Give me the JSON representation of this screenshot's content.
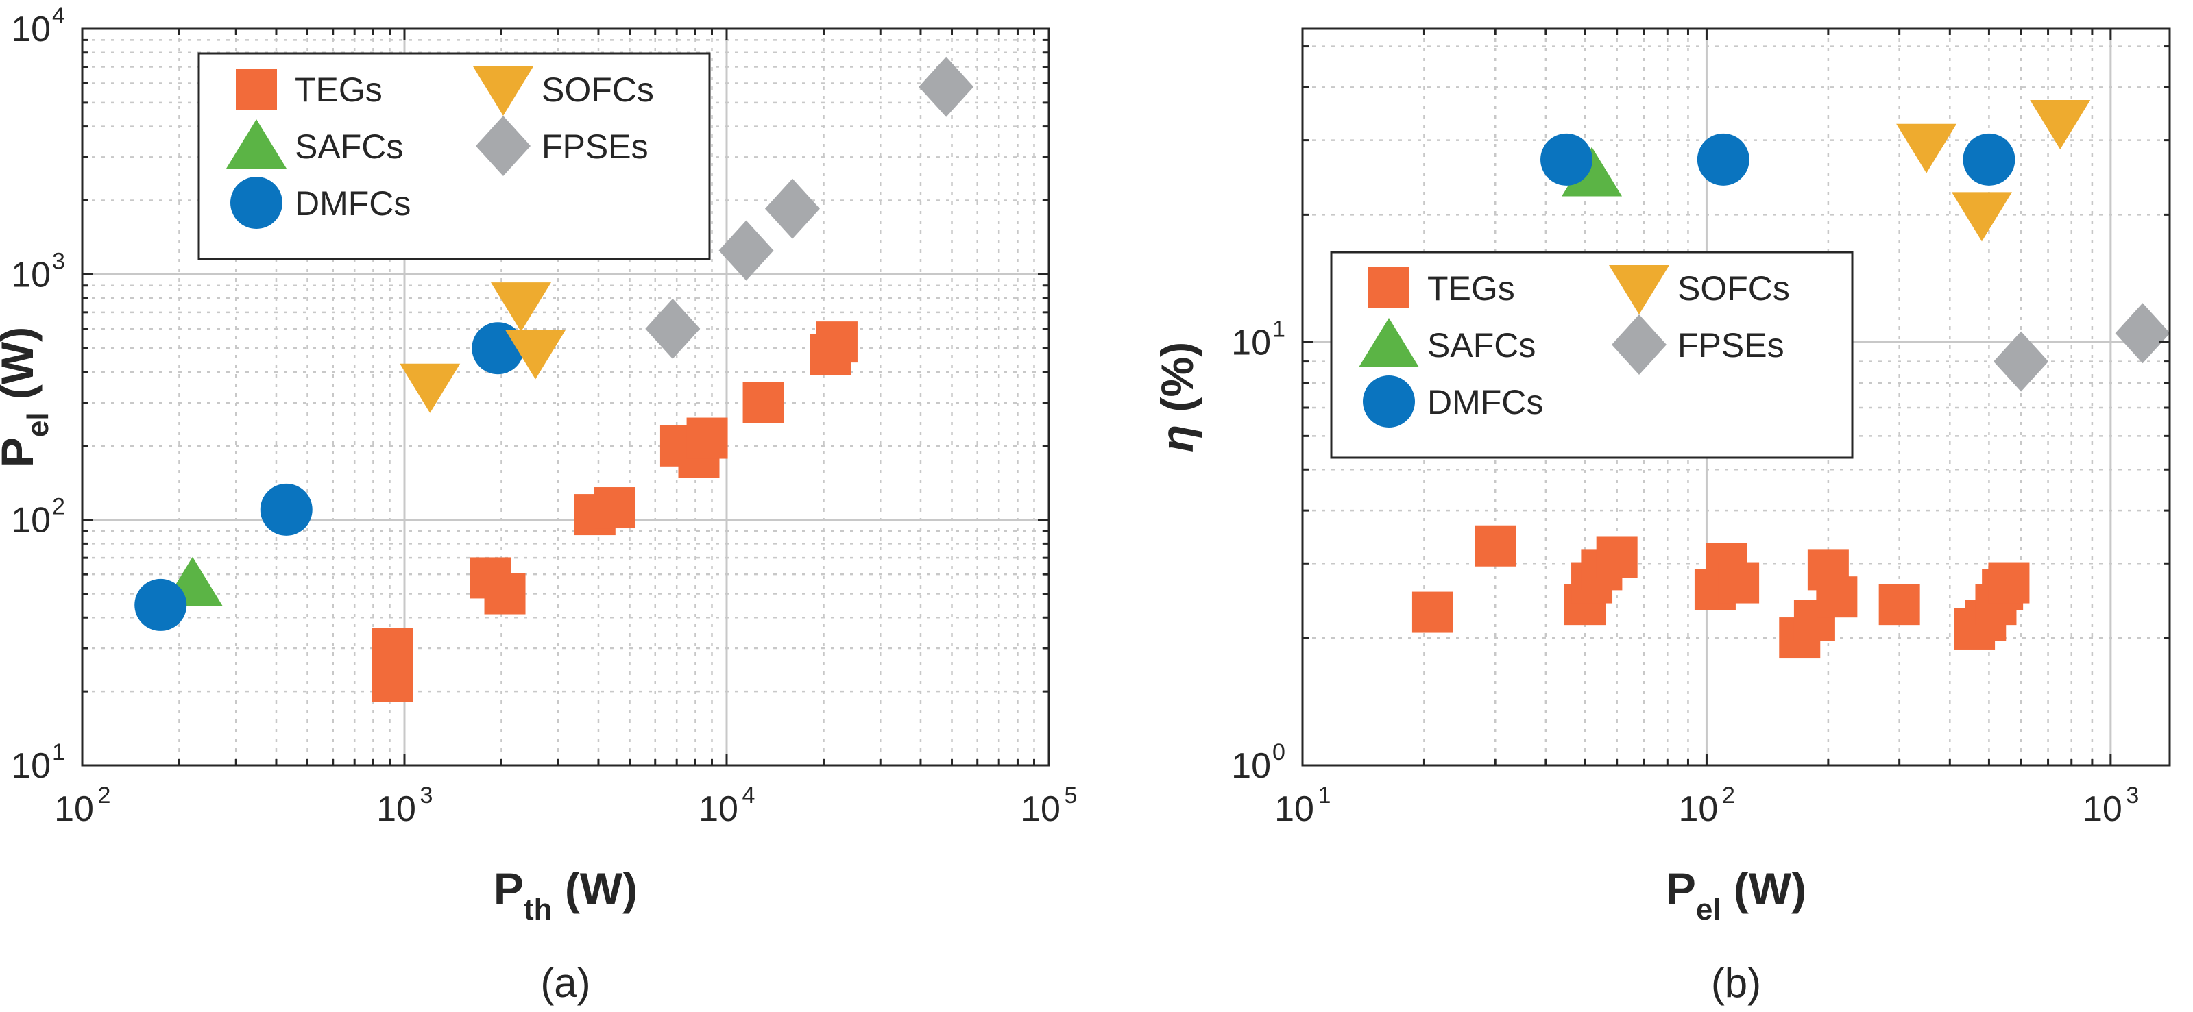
{
  "colors": {
    "TEGs": "#f26b3a",
    "SAFCs": "#5bb445",
    "DMFCs": "#0a74bf",
    "SOFCs": "#eeab2f",
    "FPSEs": "#a7a9ac",
    "grid": "#c8c8c8",
    "axis": "#262626"
  },
  "legend_labels": [
    "TEGs",
    "SAFCs",
    "DMFCs",
    "SOFCs",
    "FPSEs"
  ],
  "chart_data": [
    {
      "type": "scatter",
      "panel": "a",
      "caption": "(a)",
      "xlabel": "P",
      "xlabel_sub": "th",
      "xlabel_unit": " (W)",
      "ylabel": "P",
      "ylabel_sub": "el",
      "ylabel_unit": " (W)",
      "xscale": "log",
      "yscale": "log",
      "xlim": [
        100,
        100000
      ],
      "ylim": [
        10,
        10000
      ],
      "xticks": [
        {
          "base": "10",
          "exp": "2"
        },
        {
          "base": "10",
          "exp": "3"
        },
        {
          "base": "10",
          "exp": "4"
        },
        {
          "base": "10",
          "exp": "5"
        }
      ],
      "yticks": [
        {
          "base": "10",
          "exp": "1"
        },
        {
          "base": "10",
          "exp": "2"
        },
        {
          "base": "10",
          "exp": "3"
        },
        {
          "base": "10",
          "exp": "4"
        }
      ],
      "grid": true,
      "legend_position": "top-left",
      "series": [
        {
          "name": "TEGs",
          "marker": "square",
          "points": [
            [
              920,
              22
            ],
            [
              920,
              30
            ],
            [
              1850,
              58
            ],
            [
              2050,
              50
            ],
            [
              3900,
              105
            ],
            [
              4500,
              112
            ],
            [
              7200,
              200
            ],
            [
              8200,
              180
            ],
            [
              8700,
              215
            ],
            [
              13000,
              300
            ],
            [
              21000,
              470
            ],
            [
              22000,
              530
            ]
          ]
        },
        {
          "name": "SAFCs",
          "marker": "triangle-up",
          "points": [
            [
              220,
              55
            ]
          ]
        },
        {
          "name": "DMFCs",
          "marker": "circle",
          "points": [
            [
              175,
              45
            ],
            [
              430,
              110
            ],
            [
              1950,
              500
            ]
          ]
        },
        {
          "name": "SOFCs",
          "marker": "triangle-down",
          "points": [
            [
              1200,
              350
            ],
            [
              2300,
              750
            ],
            [
              2550,
              480
            ]
          ]
        },
        {
          "name": "FPSEs",
          "marker": "diamond",
          "points": [
            [
              6800,
              600
            ],
            [
              11500,
              1250
            ],
            [
              16000,
              1850
            ],
            [
              48000,
              5800
            ]
          ]
        }
      ]
    },
    {
      "type": "scatter",
      "panel": "b",
      "caption": "(b)",
      "xlabel": "P",
      "xlabel_sub": "el",
      "xlabel_unit": " (W)",
      "ylabel": "η",
      "ylabel_unit": " (%)",
      "xscale": "log",
      "yscale": "log",
      "xlim": [
        10,
        1400
      ],
      "ylim": [
        1,
        55
      ],
      "xticks": [
        {
          "base": "10",
          "exp": "1"
        },
        {
          "base": "10",
          "exp": "2"
        },
        {
          "base": "10",
          "exp": "3"
        }
      ],
      "yticks": [
        {
          "base": "10",
          "exp": "0"
        },
        {
          "base": "10",
          "exp": "1"
        }
      ],
      "grid": true,
      "legend_position": "center-left",
      "series": [
        {
          "name": "TEGs",
          "marker": "square",
          "points": [
            [
              21,
              2.3
            ],
            [
              30,
              3.3
            ],
            [
              50,
              2.4
            ],
            [
              52,
              2.7
            ],
            [
              55,
              2.9
            ],
            [
              60,
              3.1
            ],
            [
              105,
              2.6
            ],
            [
              112,
              3.0
            ],
            [
              120,
              2.7
            ],
            [
              170,
              2.0
            ],
            [
              185,
              2.2
            ],
            [
              200,
              2.9
            ],
            [
              210,
              2.5
            ],
            [
              300,
              2.4
            ],
            [
              460,
              2.1
            ],
            [
              490,
              2.2
            ],
            [
              520,
              2.4
            ],
            [
              540,
              2.6
            ],
            [
              560,
              2.7
            ]
          ]
        },
        {
          "name": "SAFCs",
          "marker": "triangle-up",
          "points": [
            [
              52,
              25
            ]
          ]
        },
        {
          "name": "DMFCs",
          "marker": "circle",
          "points": [
            [
              45,
              27
            ],
            [
              110,
              27
            ],
            [
              500,
              27
            ]
          ]
        },
        {
          "name": "SOFCs",
          "marker": "triangle-down",
          "points": [
            [
              350,
              29
            ],
            [
              480,
              20
            ],
            [
              750,
              33
            ]
          ]
        },
        {
          "name": "FPSEs",
          "marker": "diamond",
          "points": [
            [
              600,
              9
            ],
            [
              1200,
              10.5
            ]
          ]
        }
      ]
    }
  ]
}
